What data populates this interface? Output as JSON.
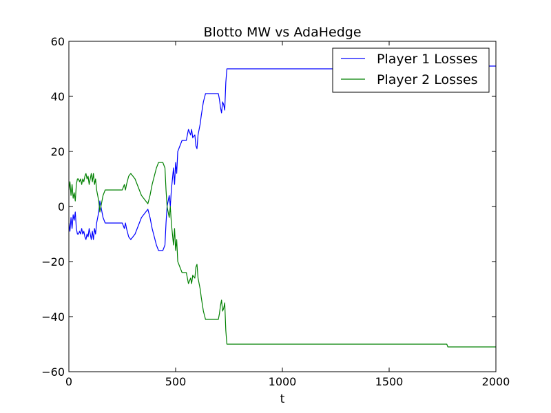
{
  "chart_data": {
    "type": "line",
    "title": "Blotto MW vs AdaHedge",
    "xlabel": "t",
    "ylabel": "",
    "xlim": [
      0,
      2000
    ],
    "ylim": [
      -60,
      60
    ],
    "xticks": [
      0,
      500,
      1000,
      1500,
      2000
    ],
    "yticks": [
      -60,
      -40,
      -20,
      0,
      20,
      40,
      60
    ],
    "xtick_labels": [
      "0",
      "500",
      "1000",
      "1500",
      "2000"
    ],
    "ytick_labels": [
      "−60",
      "−40",
      "−20",
      "0",
      "20",
      "40",
      "60"
    ],
    "grid": false,
    "legend_position": "top-right",
    "series": [
      {
        "name": "Player 1 Losses",
        "color": "#0000ff",
        "x": [
          0,
          5,
          10,
          15,
          20,
          25,
          30,
          35,
          40,
          45,
          50,
          55,
          60,
          65,
          70,
          75,
          80,
          85,
          90,
          95,
          100,
          105,
          110,
          115,
          120,
          125,
          130,
          135,
          140,
          145,
          150,
          155,
          160,
          170,
          180,
          200,
          220,
          240,
          250,
          260,
          265,
          270,
          280,
          290,
          300,
          310,
          320,
          330,
          340,
          350,
          360,
          370,
          380,
          390,
          400,
          410,
          420,
          430,
          440,
          450,
          455,
          460,
          465,
          470,
          475,
          480,
          490,
          495,
          500,
          505,
          510,
          520,
          530,
          540,
          550,
          555,
          560,
          570,
          575,
          580,
          590,
          595,
          600,
          605,
          610,
          615,
          620,
          630,
          640,
          650,
          660,
          670,
          680,
          690,
          700,
          705,
          710,
          715,
          720,
          725,
          730,
          735,
          740,
          745,
          750,
          800,
          1000,
          1200,
          1400,
          1600,
          1770,
          1775,
          1800,
          2000
        ],
        "values": [
          -6,
          -9,
          -4,
          -8,
          -3,
          -5,
          -2,
          -8,
          -10,
          -10,
          -9,
          -10,
          -8,
          -10,
          -9,
          -11,
          -12,
          -10,
          -11,
          -8,
          -10,
          -12,
          -9,
          -12,
          -8,
          -10,
          -6,
          -4,
          -2,
          2,
          0,
          -2,
          -4,
          -6,
          -6,
          -6,
          -6,
          -6,
          -6,
          -8,
          -6,
          -8,
          -11,
          -12,
          -11,
          -10,
          -8,
          -6,
          -4,
          -3,
          -2,
          -1,
          -4,
          -8,
          -11,
          -14,
          -16,
          -16,
          -16,
          -14,
          -6,
          0,
          2,
          4,
          0,
          6,
          14,
          8,
          16,
          12,
          20,
          22,
          24,
          24,
          24,
          26,
          28,
          26,
          28,
          25,
          26,
          22,
          21,
          26,
          28,
          30,
          33,
          38,
          41,
          41,
          41,
          41,
          41,
          41,
          41,
          39,
          36,
          34,
          38,
          37,
          35,
          45,
          50,
          50,
          50,
          50,
          50,
          50,
          50,
          50,
          50,
          51,
          51,
          51
        ]
      },
      {
        "name": "Player 2 Losses",
        "color": "#008000",
        "x": [
          0,
          5,
          10,
          15,
          20,
          25,
          30,
          35,
          40,
          45,
          50,
          55,
          60,
          65,
          70,
          75,
          80,
          85,
          90,
          95,
          100,
          105,
          110,
          115,
          120,
          125,
          130,
          135,
          140,
          145,
          150,
          155,
          160,
          170,
          180,
          200,
          220,
          240,
          250,
          260,
          265,
          270,
          280,
          290,
          300,
          310,
          320,
          330,
          340,
          350,
          360,
          370,
          380,
          390,
          400,
          410,
          420,
          430,
          440,
          450,
          455,
          460,
          465,
          470,
          475,
          480,
          490,
          495,
          500,
          505,
          510,
          520,
          530,
          540,
          550,
          555,
          560,
          570,
          575,
          580,
          590,
          595,
          600,
          605,
          610,
          615,
          620,
          630,
          640,
          650,
          660,
          670,
          680,
          690,
          700,
          705,
          710,
          715,
          720,
          725,
          730,
          735,
          740,
          745,
          750,
          800,
          1000,
          1200,
          1400,
          1600,
          1770,
          1775,
          1800,
          2000
        ],
        "values": [
          6,
          9,
          4,
          8,
          3,
          5,
          2,
          8,
          10,
          10,
          9,
          10,
          8,
          10,
          9,
          11,
          12,
          10,
          11,
          8,
          10,
          12,
          9,
          12,
          8,
          10,
          6,
          4,
          2,
          -2,
          0,
          2,
          4,
          6,
          6,
          6,
          6,
          6,
          6,
          8,
          6,
          8,
          11,
          12,
          11,
          10,
          8,
          6,
          4,
          3,
          2,
          1,
          4,
          8,
          11,
          14,
          16,
          16,
          16,
          14,
          6,
          0,
          -2,
          -4,
          0,
          -6,
          -14,
          -8,
          -16,
          -12,
          -20,
          -22,
          -24,
          -24,
          -24,
          -26,
          -28,
          -26,
          -28,
          -25,
          -26,
          -22,
          -21,
          -26,
          -28,
          -30,
          -33,
          -38,
          -41,
          -41,
          -41,
          -41,
          -41,
          -41,
          -41,
          -39,
          -36,
          -34,
          -38,
          -37,
          -35,
          -45,
          -50,
          -50,
          -50,
          -50,
          -50,
          -50,
          -50,
          -50,
          -50,
          -51,
          -51,
          -51
        ]
      }
    ]
  }
}
